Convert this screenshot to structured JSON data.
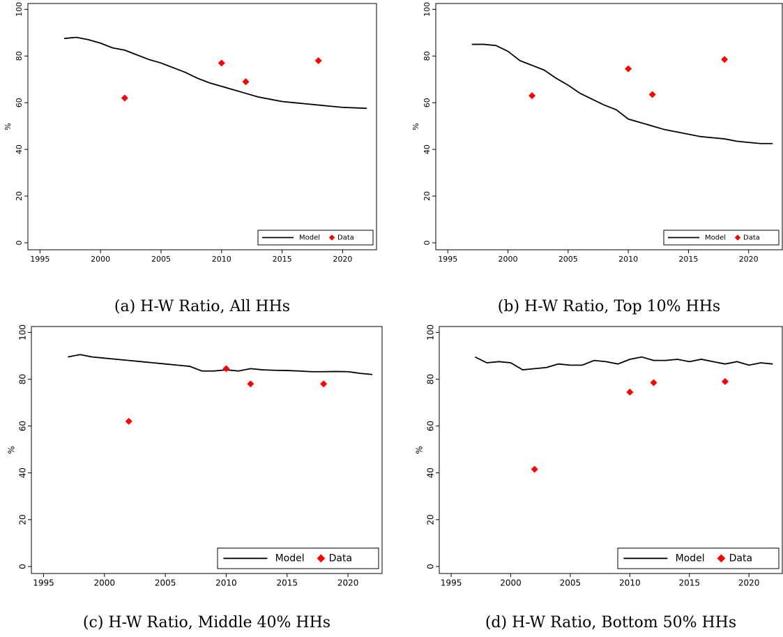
{
  "chart_data": [
    {
      "type": "line",
      "caption": "(a) H-W Ratio, All HHs",
      "ylabel": "%",
      "xlim": [
        1994,
        2022.8
      ],
      "ylim": [
        -3,
        102.5
      ],
      "xticks": [
        1995,
        2000,
        2005,
        2010,
        2015,
        2020
      ],
      "yticks": [
        0,
        20,
        40,
        60,
        80,
        100
      ],
      "legend": "lower right",
      "series": [
        {
          "name": "Model",
          "type": "line",
          "color": "#000000",
          "x": [
            1997,
            1998,
            1999,
            2000,
            2001,
            2002,
            2003,
            2004,
            2005,
            2006,
            2007,
            2008,
            2009,
            2010,
            2011,
            2012,
            2013,
            2014,
            2015,
            2016,
            2017,
            2018,
            2019,
            2020,
            2021,
            2022
          ],
          "values": [
            87.5,
            88,
            87,
            85.5,
            83.5,
            82.5,
            80.5,
            78.5,
            77,
            75,
            73,
            70.5,
            68.5,
            67,
            65.5,
            64,
            62.5,
            61.5,
            60.5,
            60,
            59.5,
            59,
            58.5,
            58,
            57.8,
            57.6
          ]
        },
        {
          "name": "Data",
          "type": "scatter",
          "color": "#ff0000",
          "x": [
            2002,
            2010,
            2012,
            2018
          ],
          "values": [
            62,
            77,
            69,
            78
          ]
        }
      ]
    },
    {
      "type": "line",
      "caption": "(b) H-W Ratio, Top 10% HHs",
      "ylabel": "%",
      "xlim": [
        1994,
        2022.8
      ],
      "ylim": [
        -3,
        102.5
      ],
      "xticks": [
        1995,
        2000,
        2005,
        2010,
        2015,
        2020
      ],
      "yticks": [
        0,
        20,
        40,
        60,
        80,
        100
      ],
      "legend": "lower right",
      "series": [
        {
          "name": "Model",
          "type": "line",
          "color": "#000000",
          "x": [
            1997,
            1998,
            1999,
            2000,
            2001,
            2002,
            2003,
            2004,
            2005,
            2006,
            2007,
            2008,
            2009,
            2010,
            2011,
            2012,
            2013,
            2014,
            2015,
            2016,
            2017,
            2018,
            2019,
            2020,
            2021,
            2022
          ],
          "values": [
            85,
            85,
            84.5,
            82,
            78,
            76,
            74,
            70.5,
            67.5,
            64,
            61.5,
            59,
            57,
            53,
            51.5,
            50,
            48.5,
            47.5,
            46.5,
            45.5,
            45,
            44.5,
            43.5,
            43,
            42.5,
            42.5
          ]
        },
        {
          "name": "Data",
          "type": "scatter",
          "color": "#ff0000",
          "x": [
            2002,
            2010,
            2012,
            2018
          ],
          "values": [
            63,
            74.5,
            63.5,
            78.5
          ]
        }
      ]
    },
    {
      "type": "line",
      "caption": "(c) H-W Ratio, Middle 40% HHs",
      "ylabel": "%",
      "xlim": [
        1994,
        2022.8
      ],
      "ylim": [
        -3,
        102.5
      ],
      "xticks": [
        1995,
        2000,
        2005,
        2010,
        2015,
        2020
      ],
      "yticks": [
        0,
        20,
        40,
        60,
        80,
        100
      ],
      "legend": "lower right",
      "series": [
        {
          "name": "Model",
          "type": "line",
          "color": "#000000",
          "x": [
            1997,
            1998,
            1999,
            2000,
            2001,
            2002,
            2003,
            2004,
            2005,
            2006,
            2007,
            2008,
            2009,
            2010,
            2011,
            2012,
            2013,
            2014,
            2015,
            2016,
            2017,
            2018,
            2019,
            2020,
            2021,
            2022
          ],
          "values": [
            89.5,
            90.5,
            89.5,
            89,
            88.5,
            88,
            87.5,
            87,
            86.5,
            86,
            85.5,
            83.5,
            83.5,
            84,
            83.5,
            84.5,
            84,
            83.8,
            83.7,
            83.5,
            83.2,
            83.2,
            83.3,
            83.2,
            82.5,
            82
          ]
        },
        {
          "name": "Data",
          "type": "scatter",
          "color": "#ff0000",
          "x": [
            2002,
            2010,
            2012,
            2018
          ],
          "values": [
            62,
            84.5,
            78,
            78
          ]
        }
      ]
    },
    {
      "type": "line",
      "caption": "(d) H-W Ratio, Bottom 50% HHs",
      "ylabel": "%",
      "xlim": [
        1994,
        2022.8
      ],
      "ylim": [
        -3,
        102.5
      ],
      "xticks": [
        1995,
        2000,
        2005,
        2010,
        2015,
        2020
      ],
      "yticks": [
        0,
        20,
        40,
        60,
        80,
        100
      ],
      "legend": "lower right",
      "series": [
        {
          "name": "Model",
          "type": "line",
          "color": "#000000",
          "x": [
            1997,
            1998,
            1999,
            2000,
            2001,
            2002,
            2003,
            2004,
            2005,
            2006,
            2007,
            2008,
            2009,
            2010,
            2011,
            2012,
            2013,
            2014,
            2015,
            2016,
            2017,
            2018,
            2019,
            2020,
            2021,
            2022
          ],
          "values": [
            89.5,
            87,
            87.5,
            87,
            84,
            84.5,
            85,
            86.5,
            86,
            86,
            88,
            87.5,
            86.5,
            88.5,
            89.5,
            88,
            88,
            88.5,
            87.5,
            88.5,
            87.5,
            86.5,
            87.5,
            86,
            87,
            86.5
          ]
        },
        {
          "name": "Data",
          "type": "scatter",
          "color": "#ff0000",
          "x": [
            2002,
            2010,
            2012,
            2018
          ],
          "values": [
            41.5,
            74.5,
            78.5,
            79
          ]
        }
      ]
    }
  ]
}
